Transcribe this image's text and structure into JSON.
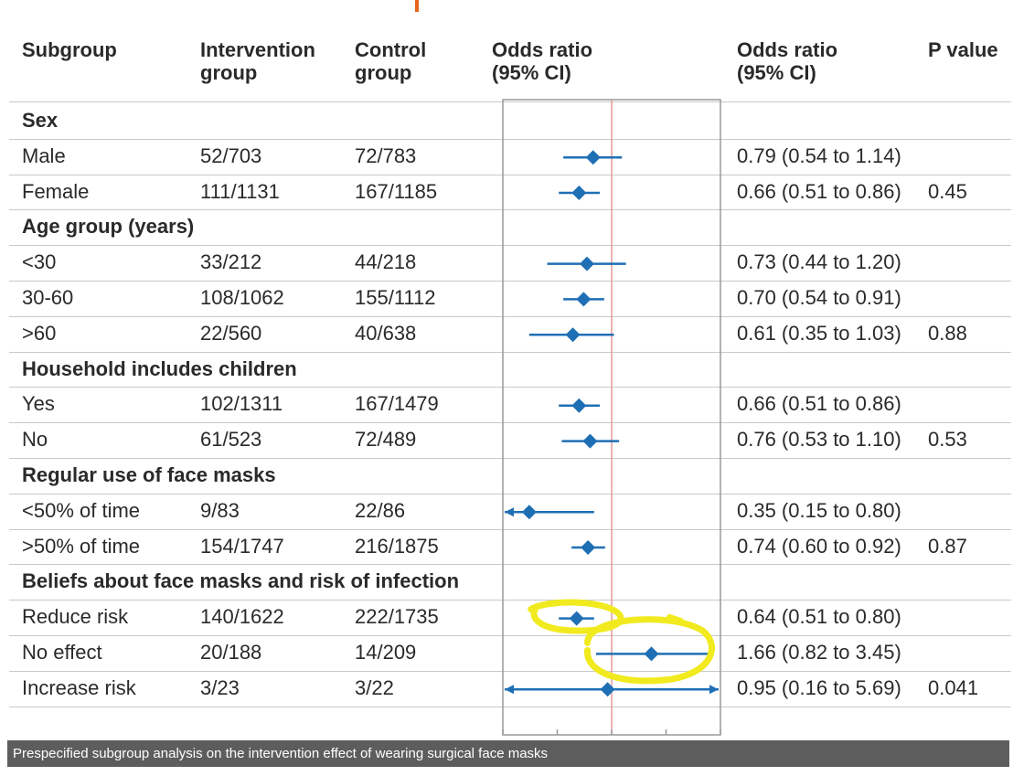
{
  "header": {
    "subgroup": "Subgroup",
    "intervention": "Intervention\ngroup",
    "control": "Control\ngroup",
    "or_plot": "Odds ratio\n(95% CI)",
    "or_text": "Odds ratio\n(95% CI)",
    "pvalue": "P value"
  },
  "rows": [
    {
      "type": "group",
      "label": "Sex"
    },
    {
      "type": "data",
      "label": "Male",
      "intervention": "52/703",
      "control": "72/783",
      "or_text": "0.79 (0.54 to 1.14)",
      "pvalue": ""
    },
    {
      "type": "data",
      "label": "Female",
      "intervention": "111/1131",
      "control": "167/1185",
      "or_text": "0.66 (0.51 to 0.86)",
      "pvalue": "0.45"
    },
    {
      "type": "group",
      "label": "Age group (years)"
    },
    {
      "type": "data",
      "label": "<30",
      "intervention": "33/212",
      "control": "44/218",
      "or_text": "0.73 (0.44 to 1.20)",
      "pvalue": ""
    },
    {
      "type": "data",
      "label": "30-60",
      "intervention": "108/1062",
      "control": "155/1112",
      "or_text": "0.70 (0.54 to 0.91)",
      "pvalue": ""
    },
    {
      "type": "data",
      "label": ">60",
      "intervention": "22/560",
      "control": "40/638",
      "or_text": "0.61 (0.35 to 1.03)",
      "pvalue": "0.88"
    },
    {
      "type": "group",
      "label": "Household includes children"
    },
    {
      "type": "data",
      "label": "Yes",
      "intervention": "102/1311",
      "control": "167/1479",
      "or_text": "0.66 (0.51 to 0.86)",
      "pvalue": ""
    },
    {
      "type": "data",
      "label": "No",
      "intervention": "61/523",
      "control": "72/489",
      "or_text": "0.76 (0.53 to 1.10)",
      "pvalue": "0.53"
    },
    {
      "type": "group",
      "label": "Regular use of face masks"
    },
    {
      "type": "data",
      "label": "<50% of time",
      "intervention": "9/83",
      "control": "22/86",
      "or_text": "0.35 (0.15 to 0.80)",
      "pvalue": ""
    },
    {
      "type": "data",
      "label": ">50% of time",
      "intervention": "154/1747",
      "control": "216/1875",
      "or_text": "0.74 (0.60 to 0.92)",
      "pvalue": "0.87"
    },
    {
      "type": "group",
      "label": "Beliefs about face masks and risk of infection"
    },
    {
      "type": "data",
      "label": "Reduce risk",
      "intervention": "140/1622",
      "control": "222/1735",
      "or_text": "0.64 (0.51 to 0.80)",
      "pvalue": ""
    },
    {
      "type": "data",
      "label": "No effect",
      "intervention": "20/188",
      "control": "14/209",
      "or_text": "1.66 (0.82 to 3.45)",
      "pvalue": ""
    },
    {
      "type": "data",
      "label": "Increase risk",
      "intervention": "3/23",
      "control": "3/22",
      "or_text": "0.95 (0.16 to 5.69)",
      "pvalue": "0.041"
    }
  ],
  "chart_data": {
    "type": "forest",
    "scale": "log",
    "xlim": [
      0.25,
      4
    ],
    "x_ticks": [
      {
        "value": 0.25,
        "label": "0.25"
      },
      {
        "value": 0.5,
        "label": "0.5"
      },
      {
        "value": 1,
        "label": "1"
      },
      {
        "value": 2,
        "label": "2"
      },
      {
        "value": 4,
        "label": "4"
      }
    ],
    "reference_line": 1,
    "colors": {
      "marker": "#1f6fb5",
      "reference": "#e59a9a",
      "frame": "#999999",
      "highlight": "#f1ea1f"
    },
    "points": [
      {
        "label": "Male",
        "or": 0.79,
        "lo": 0.54,
        "hi": 1.14
      },
      {
        "label": "Female",
        "or": 0.66,
        "lo": 0.51,
        "hi": 0.86
      },
      {
        "label": "<30",
        "or": 0.73,
        "lo": 0.44,
        "hi": 1.2
      },
      {
        "label": "30-60",
        "or": 0.7,
        "lo": 0.54,
        "hi": 0.91
      },
      {
        "label": ">60",
        "or": 0.61,
        "lo": 0.35,
        "hi": 1.03
      },
      {
        "label": "Yes",
        "or": 0.66,
        "lo": 0.51,
        "hi": 0.86
      },
      {
        "label": "No",
        "or": 0.76,
        "lo": 0.53,
        "hi": 1.1
      },
      {
        "label": "<50% of time",
        "or": 0.35,
        "lo": 0.15,
        "hi": 0.8
      },
      {
        "label": ">50% of time",
        "or": 0.74,
        "lo": 0.6,
        "hi": 0.92
      },
      {
        "label": "Reduce risk",
        "or": 0.64,
        "lo": 0.51,
        "hi": 0.8
      },
      {
        "label": "No effect",
        "or": 1.66,
        "lo": 0.82,
        "hi": 3.45
      },
      {
        "label": "Increase risk",
        "or": 0.95,
        "lo": 0.16,
        "hi": 5.69
      }
    ],
    "highlighted": [
      "Reduce risk",
      "No effect"
    ]
  },
  "caption": "Prespecified subgroup analysis on the intervention effect of wearing surgical face masks"
}
